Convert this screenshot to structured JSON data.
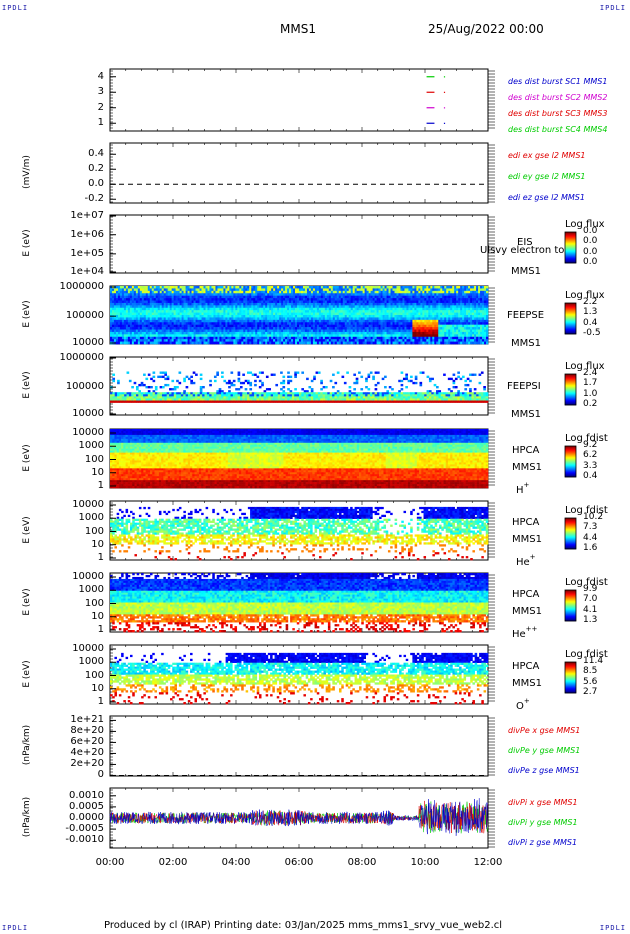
{
  "header": {
    "spacecraft": "MMS1",
    "date": "25/Aug/2022 00:00",
    "corner_tl": "IPDLI",
    "corner_tr": "IPDLI",
    "corner_bl": "IPDLI",
    "corner_br": "IPDLI"
  },
  "footer": {
    "text": "Produced by cl (IRAP)   Printing date: 03/Jan/2025   mms_mms1_srvy_vue_web2.cl"
  },
  "colors": {
    "red": "#e00000",
    "green": "#00cc00",
    "blue": "#0000cc",
    "magenta": "#d000d0"
  },
  "chart_data": [
    {
      "type": "line",
      "panel": "burst-flags",
      "ylim": [
        0.5,
        4.5
      ],
      "yticks": [
        "4",
        "3",
        "2",
        "1"
      ],
      "ytick_values": [
        4,
        3,
        2,
        1
      ],
      "legend": [
        {
          "text": "des dist burst SC1 MMS1",
          "color": "#0000cc"
        },
        {
          "text": "des dist burst SC2 MMS2",
          "color": "#d000d0"
        },
        {
          "text": "des dist burst SC3 MMS3",
          "color": "#e00000"
        },
        {
          "text": "des dist burst SC4 MMS4",
          "color": "#00cc00"
        }
      ],
      "series": [
        {
          "y": 4,
          "color": "#00cc00",
          "x_hours": [
            10.05,
            10.3
          ],
          "dot_hours": 10.6
        },
        {
          "y": 3,
          "color": "#e00000",
          "x_hours": [
            10.05,
            10.3
          ],
          "dot_hours": 10.6
        },
        {
          "y": 2,
          "color": "#d000d0",
          "x_hours": [
            10.05,
            10.3
          ],
          "dot_hours": 10.6
        },
        {
          "y": 1,
          "color": "#0000cc",
          "x_hours": [
            10.05,
            10.3
          ],
          "dot_hours": 10.6
        }
      ]
    },
    {
      "type": "line",
      "panel": "edi-e-field",
      "ylabel": "(mV/m)",
      "ylim": [
        -0.25,
        0.55
      ],
      "yticks": [
        "0.4",
        "0.2",
        "0.0",
        "-0.2"
      ],
      "ytick_values": [
        0.4,
        0.2,
        0.0,
        -0.2
      ],
      "dashed_zero": true,
      "legend": [
        {
          "text": "edi ex gse l2 MMS1",
          "color": "#e00000"
        },
        {
          "text": "edi ey gse l2 MMS1",
          "color": "#00cc00"
        },
        {
          "text": "edi ez gse l2 MMS1",
          "color": "#0000cc"
        }
      ]
    },
    {
      "type": "heatmap",
      "panel": "eis",
      "ylabel": "E (eV)",
      "yticks": [
        "1e+07",
        "1e+06",
        "1e+05",
        "1e+04"
      ],
      "instrument": [
        "EIS",
        "MMS1"
      ],
      "overlay_text": "Ulsvy electron to",
      "colorbar_title": "Log flux",
      "colorbar_values": [
        "0.0",
        "0.0",
        "0.0",
        "0.0"
      ],
      "empty": true
    },
    {
      "type": "heatmap",
      "panel": "feeps-electrons",
      "ylabel": "E (eV)",
      "yticks": [
        "1000000",
        "100000",
        "10000"
      ],
      "instrument": [
        "FEEPSE",
        "MMS1"
      ],
      "colorbar_title": "Log flux",
      "colorbar_values": [
        "2.2",
        "1.3",
        "0.4",
        "-0.5"
      ]
    },
    {
      "type": "heatmap",
      "panel": "feeps-ions",
      "ylabel": "E (eV)",
      "yticks": [
        "1000000",
        "100000",
        "10000"
      ],
      "instrument": [
        "FEEPSI",
        "MMS1"
      ],
      "colorbar_title": "Log flux",
      "colorbar_values": [
        "2.4",
        "1.7",
        "1.0",
        "0.2"
      ]
    },
    {
      "type": "heatmap",
      "panel": "hpca-h",
      "ylabel": "E (eV)",
      "yticks": [
        "10000",
        "1000",
        "100",
        "10",
        "1"
      ],
      "instrument": [
        "HPCA",
        "MMS1"
      ],
      "species": "H",
      "species_sup": "+",
      "colorbar_title": "Log fdist",
      "colorbar_values": [
        "9.2",
        "6.2",
        "3.3",
        "0.4"
      ]
    },
    {
      "type": "heatmap",
      "panel": "hpca-he",
      "ylabel": "E (eV)",
      "yticks": [
        "10000",
        "1000",
        "100",
        "10",
        "1"
      ],
      "instrument": [
        "HPCA",
        "MMS1"
      ],
      "species": "He",
      "species_sup": "+",
      "colorbar_title": "Log fdist",
      "colorbar_values": [
        "10.2",
        "7.3",
        "4.4",
        "1.6"
      ]
    },
    {
      "type": "heatmap",
      "panel": "hpca-he2",
      "ylabel": "E (eV)",
      "yticks": [
        "10000",
        "1000",
        "100",
        "10",
        "1"
      ],
      "instrument": [
        "HPCA",
        "MMS1"
      ],
      "species": "He",
      "species_sup": "++",
      "colorbar_title": "Log fdist",
      "colorbar_values": [
        "9.9",
        "7.0",
        "4.1",
        "1.3"
      ]
    },
    {
      "type": "heatmap",
      "panel": "hpca-o",
      "ylabel": "E (eV)",
      "yticks": [
        "10000",
        "1000",
        "100",
        "10",
        "1"
      ],
      "instrument": [
        "HPCA",
        "MMS1"
      ],
      "species": "O",
      "species_sup": "+",
      "colorbar_title": "Log fdist",
      "colorbar_values": [
        "11.4",
        "8.5",
        "5.6",
        "2.7"
      ]
    },
    {
      "type": "line",
      "panel": "divpe",
      "ylabel": "(nPa/km)",
      "yticks": [
        "1e+21",
        "8e+20",
        "6e+20",
        "4e+20",
        "2e+20",
        "0"
      ],
      "ytick_values": [
        1e+21,
        8e+20,
        6e+20,
        4e+20,
        2e+20,
        0
      ],
      "ylim": [
        -1e+19,
        1.08e+21
      ],
      "dashed_zero": true,
      "legend": [
        {
          "text": "divPe x gse MMS1",
          "color": "#e00000"
        },
        {
          "text": "divPe y gse MMS1",
          "color": "#00cc00"
        },
        {
          "text": "divPe z gse MMS1",
          "color": "#0000cc"
        }
      ]
    },
    {
      "type": "line",
      "panel": "divpi",
      "ylabel": "(nPa/km)",
      "yticks": [
        "0.0010",
        "0.0005",
        "0.0000",
        "-0.0005",
        "-0.0010"
      ],
      "ytick_values": [
        0.001,
        0.0005,
        0.0,
        -0.0005,
        -0.001
      ],
      "ylim": [
        -0.00135,
        0.00135
      ],
      "legend": [
        {
          "text": "divPi x gse MMS1",
          "color": "#e00000"
        },
        {
          "text": "divPi y gse MMS1",
          "color": "#00cc00"
        },
        {
          "text": "divPi z gse MMS1",
          "color": "#0000cc"
        }
      ]
    }
  ],
  "x_axis": {
    "xlim_hours": [
      0,
      12
    ],
    "ticks": [
      "00:00",
      "02:00",
      "04:00",
      "06:00",
      "08:00",
      "10:00",
      "12:00"
    ]
  }
}
